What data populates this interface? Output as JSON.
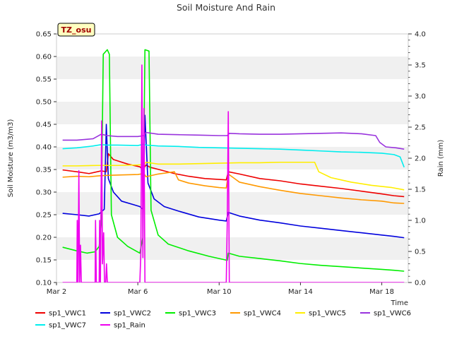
{
  "chart_data": {
    "type": "line",
    "title": "Soil Moisture And Rain",
    "badge": "TZ_osu",
    "xlabel": "Time",
    "ylabel": "Soil Moisture (m3/m3)",
    "y2label": "Rain (mm)",
    "x_unit": "days of March",
    "xlim": [
      2.0,
      19.3
    ],
    "ylim": [
      0.1,
      0.65
    ],
    "y2lim": [
      0.0,
      4.0
    ],
    "x_ticks": [
      {
        "value": 2,
        "label": "Mar 2"
      },
      {
        "value": 6,
        "label": "Mar 6"
      },
      {
        "value": 10,
        "label": "Mar 10"
      },
      {
        "value": 14,
        "label": "Mar 14"
      },
      {
        "value": 18,
        "label": "Mar 18"
      }
    ],
    "y_ticks": [
      "0.10",
      "0.15",
      "0.20",
      "0.25",
      "0.30",
      "0.35",
      "0.40",
      "0.45",
      "0.50",
      "0.55",
      "0.60",
      "0.65"
    ],
    "y2_ticks": [
      "0.0",
      "0.5",
      "1.0",
      "1.5",
      "2.0",
      "2.5",
      "3.0",
      "3.5",
      "4.0"
    ],
    "grid": "horizontal alternating bands",
    "legend_position": "bottom",
    "series": [
      {
        "name": "sp1_VWC1",
        "color": "#ee0000",
        "axis": "left",
        "points": [
          [
            2.3,
            0.349
          ],
          [
            3.0,
            0.345
          ],
          [
            3.6,
            0.341
          ],
          [
            4.2,
            0.347
          ],
          [
            4.45,
            0.345
          ],
          [
            4.55,
            0.385
          ],
          [
            4.8,
            0.372
          ],
          [
            5.5,
            0.362
          ],
          [
            6.1,
            0.356
          ],
          [
            6.25,
            0.35
          ],
          [
            6.4,
            0.36
          ],
          [
            6.6,
            0.355
          ],
          [
            7.2,
            0.348
          ],
          [
            7.8,
            0.341
          ],
          [
            8.5,
            0.335
          ],
          [
            9.3,
            0.33
          ],
          [
            10.0,
            0.328
          ],
          [
            10.35,
            0.327
          ],
          [
            10.45,
            0.345
          ],
          [
            11.0,
            0.34
          ],
          [
            12.0,
            0.33
          ],
          [
            13.0,
            0.325
          ],
          [
            14.0,
            0.318
          ],
          [
            15.0,
            0.313
          ],
          [
            16.0,
            0.308
          ],
          [
            17.0,
            0.302
          ],
          [
            18.0,
            0.296
          ],
          [
            18.6,
            0.292
          ],
          [
            19.1,
            0.29
          ]
        ]
      },
      {
        "name": "sp1_VWC2",
        "color": "#0000dd",
        "axis": "left",
        "points": [
          [
            2.3,
            0.253
          ],
          [
            3.0,
            0.25
          ],
          [
            3.6,
            0.247
          ],
          [
            4.1,
            0.252
          ],
          [
            4.35,
            0.262
          ],
          [
            4.45,
            0.45
          ],
          [
            4.55,
            0.33
          ],
          [
            4.8,
            0.3
          ],
          [
            5.2,
            0.28
          ],
          [
            5.8,
            0.272
          ],
          [
            6.1,
            0.268
          ],
          [
            6.25,
            0.262
          ],
          [
            6.35,
            0.47
          ],
          [
            6.5,
            0.32
          ],
          [
            6.8,
            0.285
          ],
          [
            7.3,
            0.268
          ],
          [
            8.0,
            0.258
          ],
          [
            9.0,
            0.245
          ],
          [
            10.0,
            0.238
          ],
          [
            10.35,
            0.236
          ],
          [
            10.45,
            0.255
          ],
          [
            11.0,
            0.247
          ],
          [
            12.0,
            0.238
          ],
          [
            13.0,
            0.232
          ],
          [
            14.0,
            0.225
          ],
          [
            15.0,
            0.22
          ],
          [
            16.0,
            0.215
          ],
          [
            17.0,
            0.21
          ],
          [
            18.0,
            0.205
          ],
          [
            18.6,
            0.202
          ],
          [
            19.1,
            0.199
          ]
        ]
      },
      {
        "name": "sp1_VWC3",
        "color": "#00ee00",
        "axis": "left",
        "points": [
          [
            2.3,
            0.178
          ],
          [
            3.0,
            0.17
          ],
          [
            3.5,
            0.165
          ],
          [
            3.9,
            0.168
          ],
          [
            4.1,
            0.18
          ],
          [
            4.2,
            0.23
          ],
          [
            4.3,
            0.605
          ],
          [
            4.5,
            0.615
          ],
          [
            4.6,
            0.605
          ],
          [
            4.7,
            0.25
          ],
          [
            5.0,
            0.2
          ],
          [
            5.5,
            0.18
          ],
          [
            6.1,
            0.165
          ],
          [
            6.25,
            0.2
          ],
          [
            6.35,
            0.615
          ],
          [
            6.55,
            0.612
          ],
          [
            6.65,
            0.26
          ],
          [
            7.0,
            0.205
          ],
          [
            7.5,
            0.185
          ],
          [
            8.5,
            0.17
          ],
          [
            9.5,
            0.158
          ],
          [
            10.3,
            0.15
          ],
          [
            10.4,
            0.149
          ],
          [
            10.45,
            0.165
          ],
          [
            11.0,
            0.158
          ],
          [
            12.0,
            0.153
          ],
          [
            13.0,
            0.148
          ],
          [
            14.0,
            0.142
          ],
          [
            15.0,
            0.138
          ],
          [
            16.0,
            0.135
          ],
          [
            17.0,
            0.132
          ],
          [
            18.0,
            0.129
          ],
          [
            18.6,
            0.127
          ],
          [
            19.1,
            0.125
          ]
        ]
      },
      {
        "name": "sp1_VWC4",
        "color": "#ff9900",
        "axis": "left",
        "points": [
          [
            2.3,
            0.333
          ],
          [
            3.0,
            0.335
          ],
          [
            3.6,
            0.334
          ],
          [
            4.1,
            0.336
          ],
          [
            4.5,
            0.337
          ],
          [
            5.2,
            0.338
          ],
          [
            6.0,
            0.339
          ],
          [
            6.3,
            0.341
          ],
          [
            6.4,
            0.334
          ],
          [
            7.0,
            0.34
          ],
          [
            7.8,
            0.345
          ],
          [
            8.0,
            0.327
          ],
          [
            8.5,
            0.32
          ],
          [
            9.3,
            0.314
          ],
          [
            10.0,
            0.31
          ],
          [
            10.35,
            0.309
          ],
          [
            10.45,
            0.34
          ],
          [
            11.0,
            0.322
          ],
          [
            12.0,
            0.312
          ],
          [
            13.0,
            0.304
          ],
          [
            14.0,
            0.297
          ],
          [
            15.0,
            0.292
          ],
          [
            16.0,
            0.287
          ],
          [
            17.0,
            0.283
          ],
          [
            18.0,
            0.28
          ],
          [
            18.6,
            0.276
          ],
          [
            19.1,
            0.275
          ]
        ]
      },
      {
        "name": "sp1_VWC5",
        "color": "#ffee00",
        "axis": "left",
        "points": [
          [
            2.3,
            0.358
          ],
          [
            3.0,
            0.358
          ],
          [
            4.0,
            0.359
          ],
          [
            5.0,
            0.359
          ],
          [
            6.0,
            0.36
          ],
          [
            6.3,
            0.361
          ],
          [
            6.4,
            0.366
          ],
          [
            7.0,
            0.362
          ],
          [
            8.0,
            0.362
          ],
          [
            9.0,
            0.363
          ],
          [
            10.0,
            0.364
          ],
          [
            11.0,
            0.365
          ],
          [
            12.0,
            0.365
          ],
          [
            13.0,
            0.366
          ],
          [
            14.0,
            0.366
          ],
          [
            14.7,
            0.366
          ],
          [
            14.9,
            0.345
          ],
          [
            15.5,
            0.332
          ],
          [
            16.5,
            0.322
          ],
          [
            17.5,
            0.315
          ],
          [
            18.5,
            0.31
          ],
          [
            19.1,
            0.305
          ]
        ]
      },
      {
        "name": "sp1_VWC6",
        "color": "#9933dd",
        "axis": "left",
        "points": [
          [
            2.3,
            0.415
          ],
          [
            3.0,
            0.415
          ],
          [
            3.8,
            0.418
          ],
          [
            4.2,
            0.428
          ],
          [
            4.5,
            0.425
          ],
          [
            5.0,
            0.423
          ],
          [
            6.0,
            0.423
          ],
          [
            6.3,
            0.425
          ],
          [
            6.4,
            0.432
          ],
          [
            7.0,
            0.428
          ],
          [
            8.0,
            0.427
          ],
          [
            9.0,
            0.426
          ],
          [
            10.0,
            0.425
          ],
          [
            10.4,
            0.425
          ],
          [
            10.5,
            0.43
          ],
          [
            11.0,
            0.429
          ],
          [
            12.0,
            0.428
          ],
          [
            13.0,
            0.428
          ],
          [
            14.0,
            0.429
          ],
          [
            15.0,
            0.43
          ],
          [
            16.0,
            0.431
          ],
          [
            17.0,
            0.429
          ],
          [
            17.7,
            0.425
          ],
          [
            17.9,
            0.41
          ],
          [
            18.2,
            0.4
          ],
          [
            18.7,
            0.398
          ],
          [
            19.1,
            0.395
          ]
        ]
      },
      {
        "name": "sp1_VWC7",
        "color": "#00eeee",
        "axis": "left",
        "points": [
          [
            2.3,
            0.396
          ],
          [
            3.0,
            0.398
          ],
          [
            3.8,
            0.402
          ],
          [
            4.2,
            0.405
          ],
          [
            4.5,
            0.404
          ],
          [
            5.0,
            0.404
          ],
          [
            6.0,
            0.403
          ],
          [
            6.3,
            0.406
          ],
          [
            6.4,
            0.404
          ],
          [
            7.0,
            0.402
          ],
          [
            8.0,
            0.401
          ],
          [
            9.0,
            0.399
          ],
          [
            10.0,
            0.398
          ],
          [
            11.0,
            0.397
          ],
          [
            12.0,
            0.396
          ],
          [
            13.0,
            0.395
          ],
          [
            14.0,
            0.393
          ],
          [
            15.0,
            0.391
          ],
          [
            16.0,
            0.389
          ],
          [
            17.0,
            0.388
          ],
          [
            18.0,
            0.386
          ],
          [
            18.6,
            0.383
          ],
          [
            18.9,
            0.378
          ],
          [
            19.1,
            0.355
          ]
        ]
      },
      {
        "name": "sp1_Rain",
        "color": "#ee00ee",
        "axis": "right",
        "points": [
          [
            2.3,
            0.0
          ],
          [
            3.0,
            0.0
          ],
          [
            3.02,
            1.0
          ],
          [
            3.06,
            0.0
          ],
          [
            3.1,
            1.8
          ],
          [
            3.14,
            0.0
          ],
          [
            3.18,
            0.6
          ],
          [
            3.22,
            0.0
          ],
          [
            3.9,
            0.0
          ],
          [
            3.92,
            1.0
          ],
          [
            3.96,
            0.0
          ],
          [
            4.1,
            0.0
          ],
          [
            4.12,
            1.0
          ],
          [
            4.16,
            0.0
          ],
          [
            4.22,
            2.6
          ],
          [
            4.26,
            0.3
          ],
          [
            4.32,
            0.8
          ],
          [
            4.36,
            0.0
          ],
          [
            4.42,
            0.0
          ],
          [
            4.46,
            0.3
          ],
          [
            4.5,
            0.0
          ],
          [
            6.1,
            0.0
          ],
          [
            6.15,
            0.5
          ],
          [
            6.2,
            3.5
          ],
          [
            6.25,
            0.4
          ],
          [
            6.3,
            2.8
          ],
          [
            6.35,
            0.0
          ],
          [
            10.35,
            0.0
          ],
          [
            10.4,
            1.0
          ],
          [
            10.45,
            2.75
          ],
          [
            10.5,
            0.0
          ],
          [
            19.1,
            0.0
          ]
        ]
      }
    ]
  }
}
